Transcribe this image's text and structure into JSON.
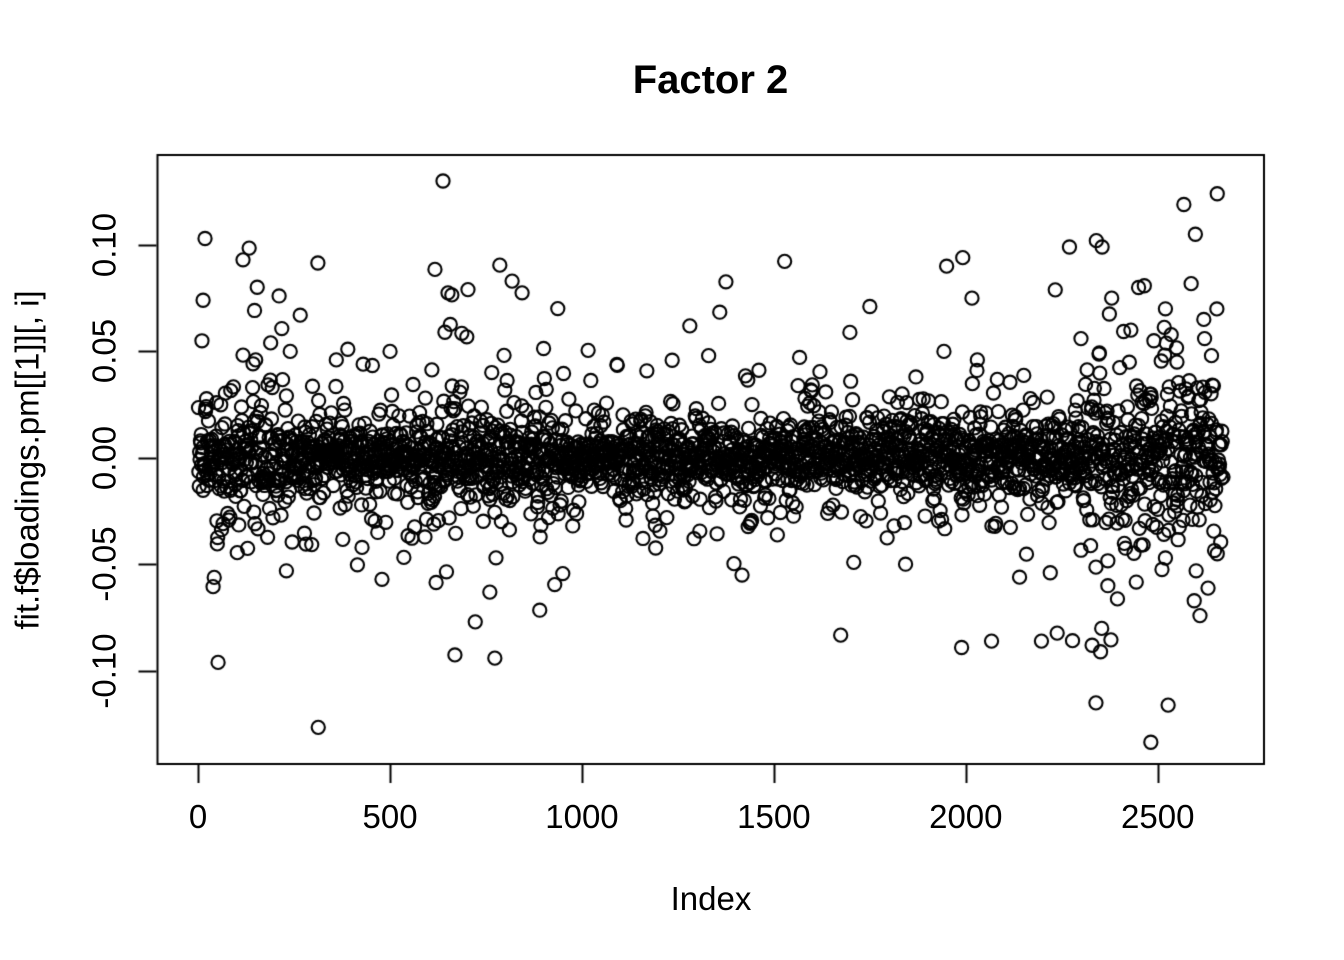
{
  "chart_data": {
    "type": "scatter",
    "title": "Factor 2",
    "xlabel": "Index",
    "ylabel": "fit.f$loadings.pm[[1]][, i]",
    "marker": "open-circle",
    "marker_color": "#000000",
    "background_color": "#ffffff",
    "grid": false,
    "legend": false,
    "xlim": [
      -105.8,
      2776.8
    ],
    "ylim": [
      -0.1437,
      0.1422
    ],
    "x_ticks": [
      {
        "value": 0,
        "label": "0"
      },
      {
        "value": 500,
        "label": "500"
      },
      {
        "value": 1000,
        "label": "1000"
      },
      {
        "value": 1500,
        "label": "1500"
      },
      {
        "value": 2000,
        "label": "2000"
      },
      {
        "value": 2500,
        "label": "2500"
      }
    ],
    "y_ticks": [
      {
        "value": 0.1,
        "label": "0.10"
      },
      {
        "value": 0.05,
        "label": "0.05"
      },
      {
        "value": 0.0,
        "label": "0.00"
      },
      {
        "value": -0.05,
        "label": "-0.05"
      },
      {
        "value": -0.1,
        "label": "-0.10"
      }
    ],
    "n_points": 2670,
    "y_center": 0.0,
    "dense_band": [
      -0.02,
      0.02
    ],
    "generator": {
      "seed": 7,
      "n": 2610,
      "components": [
        {
          "weight": 0.55,
          "sd": 0.0075
        },
        {
          "weight": 0.28,
          "sd": 0.014
        },
        {
          "weight": 0.13,
          "sd": 0.023
        },
        {
          "weight": 0.04,
          "sd": 0.038
        }
      ],
      "edge_effects": [
        {
          "from": 1,
          "to": 260,
          "scale": 1.35
        },
        {
          "from": 560,
          "to": 900,
          "scale": 1.15
        },
        {
          "from": 2310,
          "to": 2670,
          "scale": 1.8
        }
      ],
      "clamp": [
        -0.128,
        0.124
      ]
    },
    "outliers": [
      [
        18,
        0.103
      ],
      [
        13,
        0.074
      ],
      [
        117,
        0.093
      ],
      [
        312,
        0.0915
      ],
      [
        266,
        0.067
      ],
      [
        52,
        -0.096
      ],
      [
        313,
        -0.1265
      ],
      [
        150,
        0.046
      ],
      [
        240,
        0.05
      ],
      [
        360,
        0.046
      ],
      [
        390,
        0.051
      ],
      [
        430,
        0.044
      ],
      [
        500,
        0.05
      ],
      [
        479,
        -0.057
      ],
      [
        230,
        -0.053
      ],
      [
        638,
        0.13
      ],
      [
        617,
        0.0885
      ],
      [
        786,
        0.0905
      ],
      [
        818,
        0.083
      ],
      [
        844,
        0.0775
      ],
      [
        651,
        0.0775
      ],
      [
        661,
        0.0765
      ],
      [
        703,
        0.079
      ],
      [
        643,
        0.059
      ],
      [
        687,
        0.0585
      ],
      [
        669,
        -0.0925
      ],
      [
        773,
        -0.094
      ],
      [
        890,
        -0.0715
      ],
      [
        620,
        -0.0585
      ],
      [
        760,
        -0.063
      ],
      [
        1016,
        0.0505
      ],
      [
        1281,
        0.062
      ],
      [
        1330,
        0.048
      ],
      [
        1417,
        -0.055
      ],
      [
        1620,
        0.0405
      ],
      [
        1700,
        0.036
      ],
      [
        1870,
        0.038
      ],
      [
        1950,
        0.09
      ],
      [
        1992,
        0.094
      ],
      [
        2016,
        0.075
      ],
      [
        1943,
        0.05
      ],
      [
        2030,
        0.046
      ],
      [
        1989,
        -0.089
      ],
      [
        2067,
        -0.086
      ],
      [
        2197,
        -0.086
      ],
      [
        2351,
        -0.091
      ],
      [
        2339,
        -0.115
      ],
      [
        2482,
        -0.1335
      ],
      [
        2140,
        -0.056
      ],
      [
        2270,
        0.099
      ],
      [
        2340,
        0.102
      ],
      [
        2355,
        0.099
      ],
      [
        2598,
        0.105
      ],
      [
        2450,
        0.08
      ],
      [
        2520,
        0.07
      ],
      [
        2380,
        0.075
      ],
      [
        2430,
        0.06
      ],
      [
        2490,
        0.055
      ],
      [
        2550,
        0.045
      ],
      [
        2620,
        0.065
      ],
      [
        2640,
        0.048
      ],
      [
        2300,
        0.056
      ],
      [
        2370,
        -0.06
      ],
      [
        2520,
        -0.047
      ],
      [
        2600,
        -0.053
      ],
      [
        2655,
        -0.045
      ]
    ]
  }
}
